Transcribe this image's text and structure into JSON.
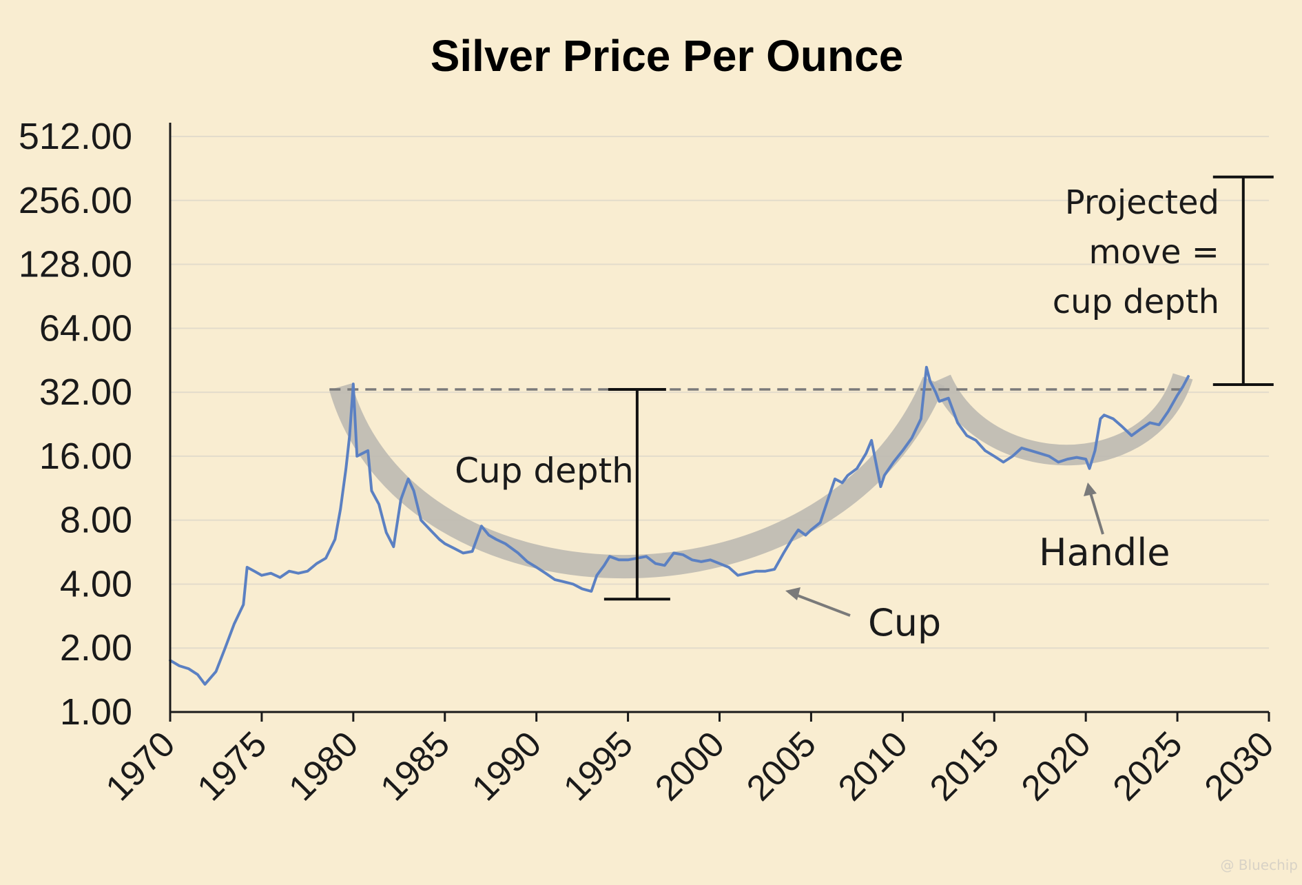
{
  "chart_data": {
    "type": "line",
    "title": "Silver Price Per Ounce",
    "xlabel": "",
    "ylabel": "",
    "y_scale": "log2",
    "ylim": [
      1,
      512
    ],
    "xlim": [
      1970,
      2030
    ],
    "y_ticks": [
      "1.00",
      "2.00",
      "4.00",
      "8.00",
      "16.00",
      "32.00",
      "64.00",
      "128.00",
      "256.00",
      "512.00"
    ],
    "x_ticks": [
      "1970",
      "1975",
      "1980",
      "1985",
      "1990",
      "1995",
      "2000",
      "2005",
      "2010",
      "2015",
      "2020",
      "2025",
      "2030"
    ],
    "grid": true,
    "line_color": "#5b80c2",
    "series": [
      {
        "x": [
          1970.0,
          1970.5,
          1971.0,
          1971.5,
          1971.9,
          1972.5,
          1973.0,
          1973.5,
          1974.0,
          1974.2,
          1974.6,
          1975.0,
          1975.5,
          1976.0,
          1976.5,
          1977.0,
          1977.5,
          1978.0,
          1978.5,
          1979.0,
          1979.3,
          1979.6,
          1979.8,
          1980.0,
          1980.2,
          1980.5,
          1980.8,
          1981.0,
          1981.4,
          1981.8,
          1982.2,
          1982.6,
          1983.0,
          1983.3,
          1983.7,
          1984.2,
          1984.7,
          1985.0,
          1985.5,
          1986.0,
          1986.5,
          1987.0,
          1987.4,
          1987.8,
          1988.3,
          1989.0,
          1989.5,
          1990.0,
          1990.5,
          1991.0,
          1991.5,
          1992.0,
          1992.5,
          1993.0,
          1993.3,
          1993.7,
          1994.0,
          1994.5,
          1995.0,
          1995.5,
          1996.0,
          1996.5,
          1997.0,
          1997.5,
          1998.0,
          1998.5,
          1999.0,
          1999.5,
          2000.0,
          2000.5,
          2001.0,
          2001.5,
          2002.0,
          2002.5,
          2003.0,
          2003.5,
          2004.0,
          2004.3,
          2004.7,
          2005.0,
          2005.5,
          2006.0,
          2006.3,
          2006.7,
          2007.0,
          2007.5,
          2008.0,
          2008.3,
          2008.8,
          2009.0,
          2009.5,
          2010.0,
          2010.5,
          2011.0,
          2011.3,
          2011.5,
          2011.8,
          2012.0,
          2012.5,
          2013.0,
          2013.5,
          2014.0,
          2014.5,
          2015.0,
          2015.5,
          2016.0,
          2016.5,
          2017.0,
          2017.5,
          2018.0,
          2018.5,
          2019.0,
          2019.5,
          2020.0,
          2020.2,
          2020.5,
          2020.8,
          2021.0,
          2021.5,
          2022.0,
          2022.5,
          2023.0,
          2023.5,
          2024.0,
          2024.5,
          2025.0,
          2025.3,
          2025.6
        ],
        "values": [
          1.75,
          1.65,
          1.6,
          1.5,
          1.35,
          1.55,
          2.0,
          2.6,
          3.2,
          4.8,
          4.6,
          4.4,
          4.5,
          4.3,
          4.6,
          4.5,
          4.6,
          5.0,
          5.3,
          6.5,
          9.0,
          14.0,
          20.0,
          35.0,
          16.0,
          16.5,
          17.0,
          11.0,
          9.5,
          7.0,
          6.0,
          10.0,
          12.5,
          11.0,
          8.0,
          7.2,
          6.5,
          6.2,
          5.9,
          5.6,
          5.7,
          7.5,
          6.8,
          6.5,
          6.2,
          5.6,
          5.1,
          4.8,
          4.5,
          4.2,
          4.1,
          4.0,
          3.8,
          3.7,
          4.4,
          4.9,
          5.4,
          5.2,
          5.2,
          5.3,
          5.4,
          5.0,
          4.9,
          5.6,
          5.5,
          5.2,
          5.1,
          5.2,
          5.0,
          4.8,
          4.4,
          4.5,
          4.6,
          4.6,
          4.7,
          5.6,
          6.6,
          7.2,
          6.8,
          7.2,
          7.8,
          10.5,
          12.5,
          12.0,
          13.0,
          14.0,
          16.5,
          19.0,
          11.5,
          13.0,
          15.0,
          17.0,
          19.5,
          24.0,
          42.0,
          36.0,
          32.0,
          29.0,
          30.0,
          23.0,
          20.0,
          19.0,
          17.0,
          16.0,
          15.0,
          16.0,
          17.5,
          17.0,
          16.5,
          16.0,
          15.0,
          15.5,
          15.8,
          15.5,
          14.0,
          17.0,
          24.0,
          25.0,
          24.0,
          22.0,
          20.0,
          21.5,
          23.0,
          22.5,
          26.0,
          31.0,
          34.0,
          38.0
        ]
      }
    ],
    "resistance_level": 33.0,
    "annotations": {
      "cup_depth": "Cup depth",
      "projected_1": "Projected",
      "projected_2": "move =",
      "projected_3": "cup depth",
      "cup": "Cup",
      "handle": "Handle"
    }
  },
  "watermark": "@ Bluechip"
}
